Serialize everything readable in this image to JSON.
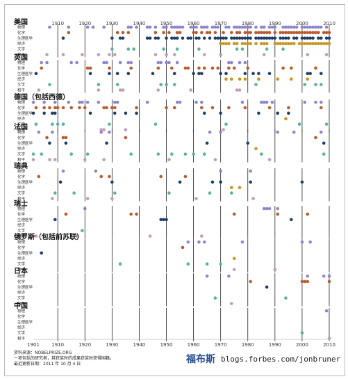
{
  "chart_data": {
    "type": "scatter",
    "x_range": [
      1901,
      2010
    ],
    "year_ticks": [
      1901,
      1910,
      1920,
      1930,
      1940,
      1950,
      1960,
      1970,
      1980,
      1990,
      2000,
      2010
    ],
    "categories": [
      "物理",
      "化学",
      "生理医学",
      "经济",
      "文学",
      "和平"
    ],
    "category_colors": [
      "#8e84cc",
      "#b85b2e",
      "#1f3e66",
      "#c8951e",
      "#5bb39a",
      "#c49ab4"
    ],
    "panels": [
      {
        "name": "美国",
        "rows": [
          [
            1907,
            1914,
            1921,
            1923,
            1927,
            1936,
            1937,
            1939,
            1943,
            1944,
            1946,
            1949,
            1950,
            1952,
            1953,
            1954,
            1955,
            1956,
            1959,
            1960,
            1961,
            1963,
            1964,
            1965,
            1967,
            1968,
            1969,
            1972,
            1973,
            1975,
            1976,
            1977,
            1978,
            1979,
            1980,
            1981,
            1983,
            1985,
            1986,
            1988,
            1989,
            1990,
            1993,
            1994,
            1995,
            1996,
            1997,
            1998,
            2000,
            2001,
            2002,
            2003,
            2004,
            2005,
            2006,
            2007,
            2009
          ],
          [
            1914,
            1932,
            1934,
            1936,
            1946,
            1949,
            1951,
            1954,
            1955,
            1960,
            1961,
            1963,
            1965,
            1966,
            1968,
            1971,
            1974,
            1976,
            1977,
            1979,
            1980,
            1981,
            1983,
            1984,
            1985,
            1986,
            1987,
            1988,
            1990,
            1992,
            1993,
            1994,
            1995,
            1996,
            1997,
            1998,
            1999,
            2000,
            2001,
            2002,
            2003,
            2004,
            2005,
            2006,
            2008,
            2009,
            2010
          ],
          [
            1912,
            1930,
            1933,
            1934,
            1943,
            1944,
            1946,
            1947,
            1950,
            1952,
            1953,
            1954,
            1956,
            1958,
            1959,
            1961,
            1962,
            1964,
            1966,
            1968,
            1969,
            1970,
            1971,
            1972,
            1974,
            1975,
            1976,
            1977,
            1978,
            1979,
            1980,
            1981,
            1983,
            1984,
            1985,
            1986,
            1987,
            1988,
            1989,
            1990,
            1992,
            1993,
            1994,
            1995,
            1997,
            1998,
            2000,
            2001,
            2002,
            2003,
            2004,
            2006,
            2007,
            2009,
            2010
          ],
          [
            1970,
            1971,
            1972,
            1973,
            1975,
            1976,
            1978,
            1979,
            1980,
            1981,
            1983,
            1985,
            1986,
            1987,
            1990,
            1991,
            1992,
            1993,
            1994,
            1995,
            1996,
            1997,
            1999,
            2000,
            2001,
            2002,
            2003,
            2004,
            2005,
            2006,
            2007,
            2008,
            2009,
            2010
          ],
          [
            1930,
            1936,
            1938,
            1949,
            1954,
            1962,
            1976,
            1978,
            1987,
            1993
          ],
          [
            1906,
            1912,
            1919,
            1925,
            1929,
            1931,
            1946,
            1950,
            1953,
            1964,
            1970,
            1986,
            2002,
            2009
          ]
        ]
      },
      {
        "name": "英国",
        "rows": [
          [
            1904,
            1906,
            1915,
            1917,
            1927,
            1928,
            1933,
            1936,
            1937,
            1947,
            1948,
            1950,
            1951,
            1954,
            1973,
            1974,
            1977,
            1979
          ],
          [
            1904,
            1921,
            1922,
            1929,
            1937,
            1947,
            1952,
            1957,
            1958,
            1962,
            1964,
            1967,
            1969,
            1973,
            1975,
            1980,
            1993,
            1996,
            2005
          ],
          [
            1902,
            1922,
            1929,
            1932,
            1936,
            1945,
            1953,
            1960,
            1962,
            1963,
            1970,
            1972,
            1979,
            1982,
            1984,
            1988,
            2002,
            2003,
            2007
          ],
          [
            1972,
            1974,
            1977,
            1979,
            1984,
            1991,
            1996,
            2002
          ],
          [
            1907,
            1925,
            1932,
            1948,
            1950,
            1953,
            1983,
            2001,
            2005,
            2007
          ],
          [
            1903,
            1925,
            1933,
            1934,
            1947,
            1959,
            1976,
            1977
          ]
        ]
      },
      {
        "name": "德国（包括西德）",
        "rows": [
          [
            1901,
            1905,
            1909,
            1914,
            1918,
            1919,
            1921,
            1925,
            1931,
            1932,
            1943,
            1954,
            1955,
            1961,
            1963,
            1978,
            1985,
            1986,
            1987,
            1989,
            2001,
            2005,
            2007
          ],
          [
            1902,
            1905,
            1907,
            1909,
            1910,
            1912,
            1915,
            1918,
            1920,
            1927,
            1928,
            1930,
            1931,
            1939,
            1950,
            1953,
            1963,
            1967,
            1973,
            1979,
            1988,
            1995,
            2007
          ],
          [
            1901,
            1905,
            1908,
            1909,
            1922,
            1931,
            1935,
            1939,
            1964,
            1970,
            1984,
            1991,
            1995
          ],
          [
            1994
          ],
          [
            1902,
            1908,
            1910,
            1912,
            1929,
            1946,
            1972,
            1999,
            2009
          ],
          [
            1926,
            1927,
            1935,
            1971
          ]
        ]
      },
      {
        "name": "法国",
        "rows": [
          [
            1903,
            1908,
            1926,
            1929,
            1966,
            1970,
            1991,
            1997,
            2007
          ],
          [
            1906,
            1912,
            1913,
            1935,
            2005
          ],
          [
            1907,
            1913,
            1928,
            1965,
            1980,
            2008
          ],
          [
            1983
          ],
          [
            1901,
            1904,
            1915,
            1921,
            1937,
            1947,
            1952,
            1957,
            1960,
            1964,
            1985,
            2008
          ],
          [
            1901,
            1907,
            1909,
            1920,
            1927,
            1951,
            1968,
            1988
          ]
        ]
      },
      {
        "name": "瑞典",
        "rows": [
          [
            1912,
            1924,
            1970,
            1981
          ],
          [
            1903,
            1926,
            1929,
            1948,
            1957
          ],
          [
            1911,
            1930,
            1955,
            1967,
            1970,
            1981,
            2000
          ],
          [
            1974,
            1977
          ],
          [
            1909,
            1916,
            1931,
            1951,
            1966,
            1974
          ],
          [
            1908,
            1921,
            1930,
            1961,
            1982
          ]
        ]
      },
      {
        "name": "瑞士",
        "rows": [
          [
            1920,
            1986,
            1987,
            1988,
            1991
          ],
          [
            1913,
            1937,
            1939,
            1975,
            1991,
            2002
          ],
          [
            1909,
            1948,
            1949,
            1950,
            1996
          ],
          [],
          [
            1919
          ],
          [
            1901,
            1902,
            1917,
            1944,
            1963
          ]
        ]
      },
      {
        "name": "俄罗斯（包括前苏联）",
        "rows": [
          [
            1958,
            1962,
            1964,
            1978,
            2000,
            2003
          ],
          [
            1956
          ],
          [
            1904
          ],
          [
            1975
          ],
          [
            1933,
            1958,
            1965,
            1970
          ],
          [
            1975,
            1990
          ]
        ]
      },
      {
        "name": "日本",
        "rows": [
          [
            1965,
            1973,
            2002,
            2008,
            2010
          ],
          [
            1981,
            2000,
            2001,
            2002,
            2010
          ],
          [
            1987
          ],
          [],
          [
            1968,
            1994
          ],
          [
            1974
          ]
        ]
      },
      {
        "name": "中国",
        "rows": [
          [
            2009
          ],
          [],
          [],
          [],
          [
            2000
          ],
          [
            2010
          ]
        ]
      }
    ]
  },
  "footer": {
    "source": "资料来源：NOBELPRIZE.ORG",
    "note": "一项包括的研究者，其获奖时的成果获奖时获得国籍。",
    "updated": "最近更新日期：2011 年 10 月 4 日"
  },
  "brand": {
    "logo": "福布斯",
    "url": "blogs.forbes.com/jonbruner"
  }
}
